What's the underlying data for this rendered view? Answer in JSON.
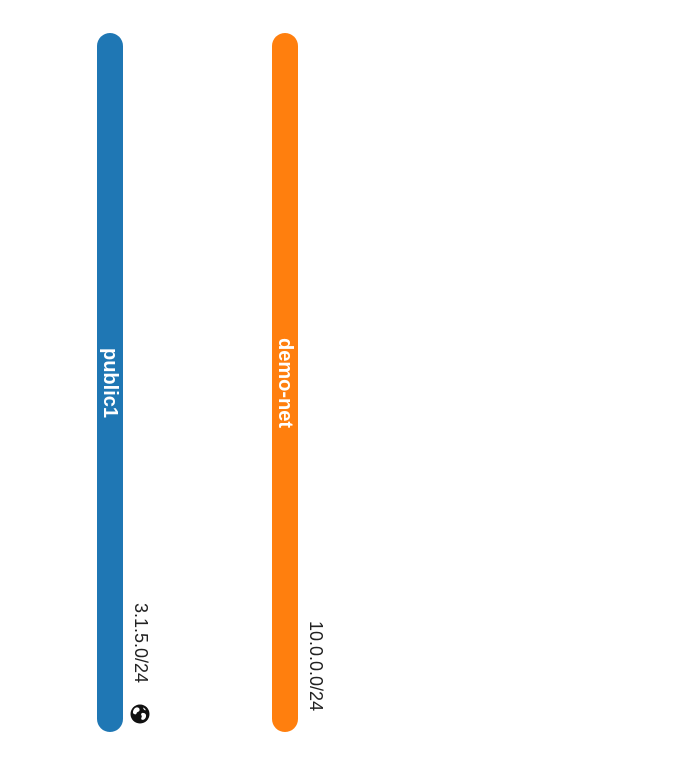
{
  "networks": [
    {
      "name": "public1",
      "cidr": "3.1.5.0/24",
      "color": "#1f77b4",
      "icon": "globe-icon",
      "external": true
    },
    {
      "name": "demo-net",
      "cidr": "10.0.0.0/24",
      "color": "#ff7f0e",
      "icon": "",
      "external": false
    }
  ]
}
